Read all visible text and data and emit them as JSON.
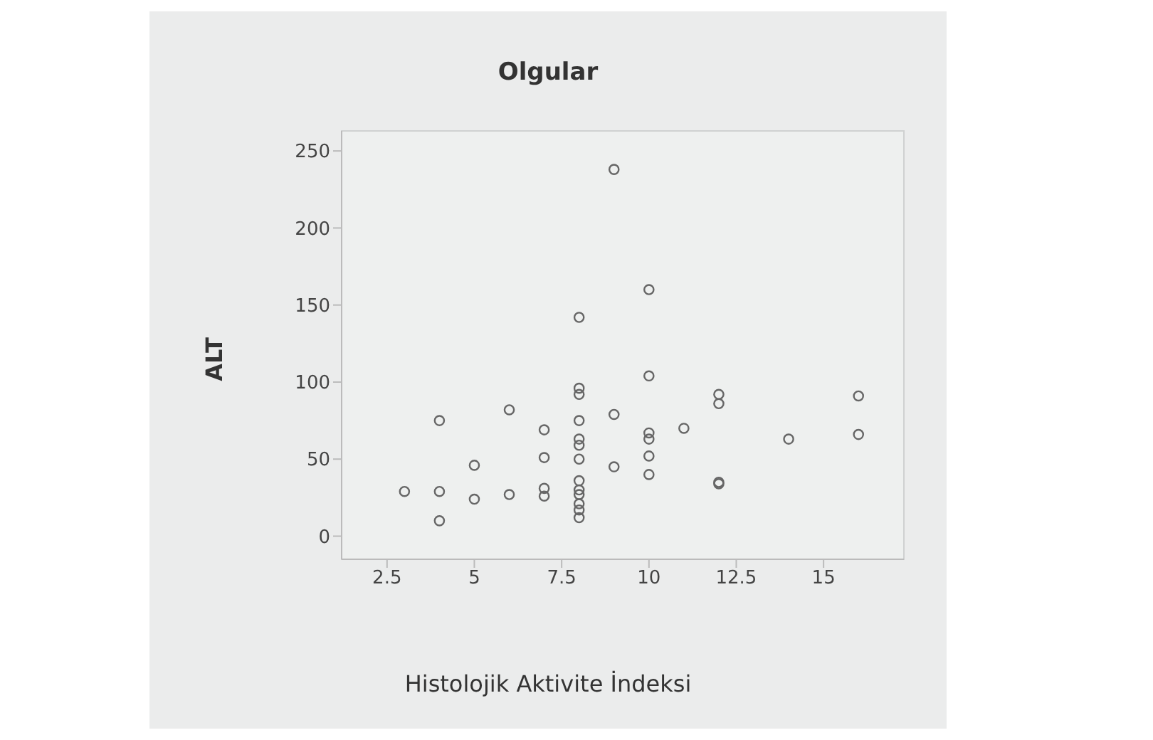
{
  "chart_data": {
    "type": "scatter",
    "title": "Olgular",
    "xlabel": "Histolojik Aktivite İndeksi",
    "ylabel": "ALT",
    "x": [
      3,
      4,
      4,
      4,
      5,
      5,
      6,
      6,
      7,
      7,
      7,
      7,
      8,
      8,
      8,
      8,
      8,
      8,
      8,
      8,
      8,
      8,
      8,
      8,
      8,
      9,
      9,
      9,
      10,
      10,
      10,
      10,
      10,
      10,
      11,
      12,
      12,
      12,
      12,
      14,
      16,
      16
    ],
    "values": [
      29,
      75,
      29,
      10,
      46,
      24,
      82,
      27,
      69,
      51,
      31,
      26,
      142,
      96,
      92,
      75,
      63,
      59,
      50,
      36,
      30,
      27,
      21,
      17,
      12,
      238,
      79,
      45,
      160,
      104,
      67,
      63,
      52,
      40,
      70,
      92,
      86,
      35,
      34,
      63,
      91,
      66
    ],
    "color": "#666666",
    "marker": "circle",
    "xlim": [
      1.2,
      17.3
    ],
    "xticks": [
      2.5,
      5,
      7.5,
      10,
      12.5,
      15
    ],
    "ylim": [
      -15,
      263
    ],
    "yticks": [
      0,
      50,
      100,
      150,
      200,
      250
    ]
  }
}
